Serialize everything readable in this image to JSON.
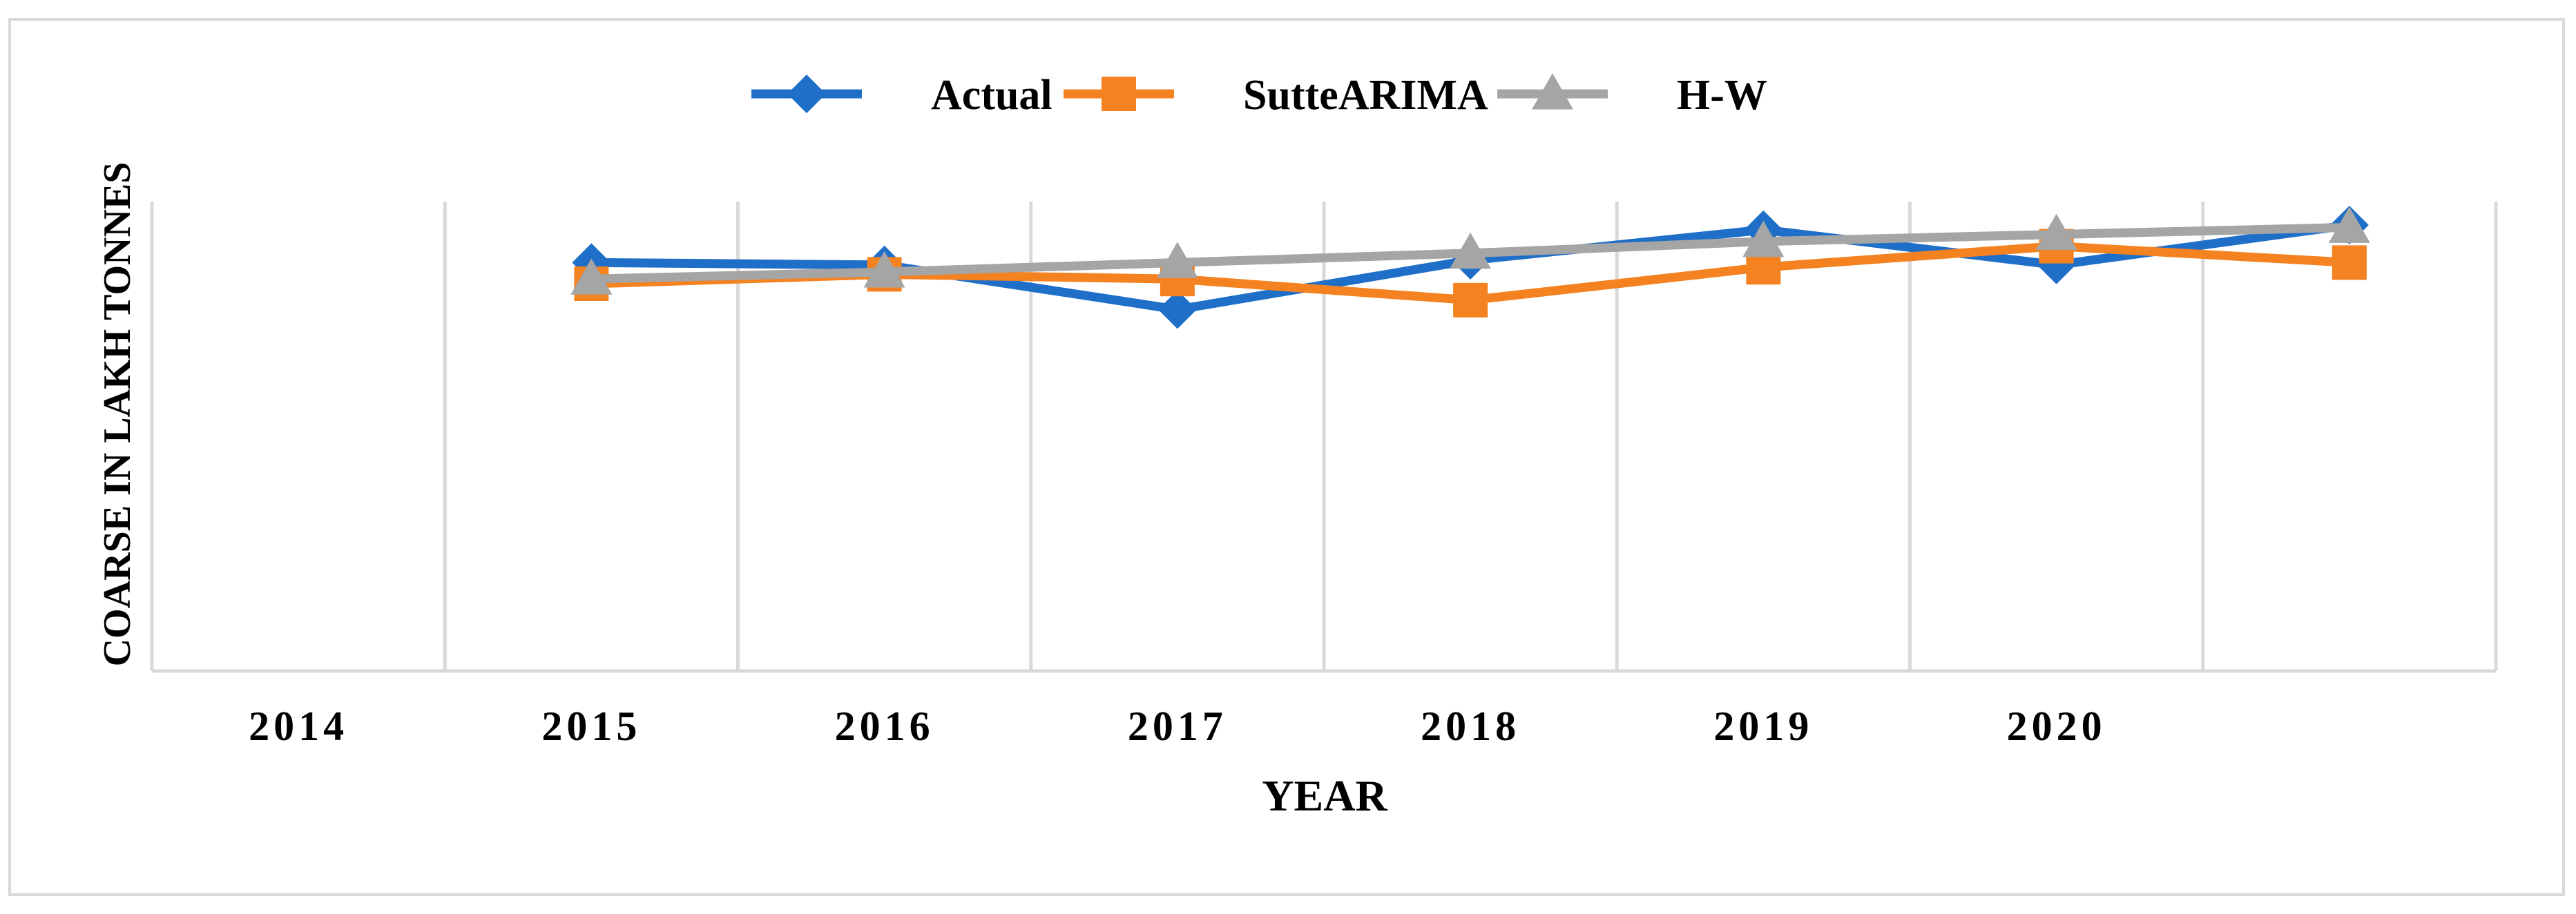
{
  "chart_data": {
    "type": "line",
    "xlabel": "YEAR",
    "ylabel": "COARSE IN LAKH TONNES",
    "categories": [
      "2014",
      "2015",
      "2016",
      "2017",
      "2018",
      "2019",
      "2020",
      ""
    ],
    "ylim": [
      0,
      100
    ],
    "grid": "vertical",
    "legend_position": "top-center",
    "series": [
      {
        "name": "Actual",
        "color": "#1f6fc9",
        "marker": "diamond",
        "values": [
          null,
          87,
          86.5,
          77,
          87.5,
          94,
          86.5,
          95
        ]
      },
      {
        "name": "SutteARIMA",
        "color": "#f58220",
        "marker": "square",
        "values": [
          null,
          82.5,
          84.5,
          83.5,
          79,
          86,
          90.5,
          87
        ]
      },
      {
        "name": "H-W",
        "color": "#a5a5a5",
        "marker": "triangle",
        "values": [
          null,
          83.5,
          85,
          87,
          89,
          91.5,
          93,
          94.5
        ]
      }
    ]
  }
}
